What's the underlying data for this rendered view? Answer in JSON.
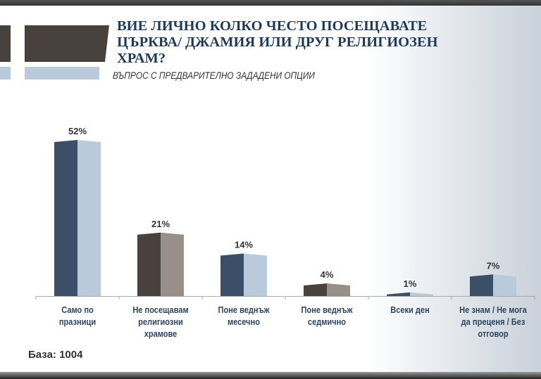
{
  "header": {
    "title": "ВИЕ ЛИЧНО КОЛКО ЧЕСТО ПОСЕЩАВАТЕ ЦЪРКВА/ ДЖАМИЯ ИЛИ ДРУГ РЕЛИГИОЗЕН ХРАМ?",
    "subtitle": "ВЪПРОС С ПРЕДВАРИТЕЛНО ЗАДАДЕНИ ОПЦИИ"
  },
  "footer": {
    "base": "База: 1004"
  },
  "colors": {
    "navy": "#3b5068",
    "lightblue": "#b9cadb",
    "darkgray": "#47423e",
    "taupe": "#978f88",
    "title": "#1f3a5a"
  },
  "chart_data": {
    "type": "bar",
    "title": "ВИЕ ЛИЧНО КОЛКО ЧЕСТО ПОСЕЩАВАТЕ ЦЪРКВА/ ДЖАМИЯ ИЛИ ДРУГ РЕЛИГИОЗЕН ХРАМ?",
    "categories": [
      "Само по празници",
      "Не посещавам религиозни храмове",
      "Поне веднъж месечно",
      "Поне веднъж седмично",
      "Всеки ден",
      "Не знам / Не мога да преценя / Без отговор"
    ],
    "values": [
      52,
      21,
      14,
      4,
      1,
      7
    ],
    "value_labels": [
      "52%",
      "21%",
      "14%",
      "4%",
      "1%",
      "7%"
    ],
    "unit": "%",
    "ylim": [
      0,
      60
    ],
    "grid": false,
    "legend": "none"
  }
}
